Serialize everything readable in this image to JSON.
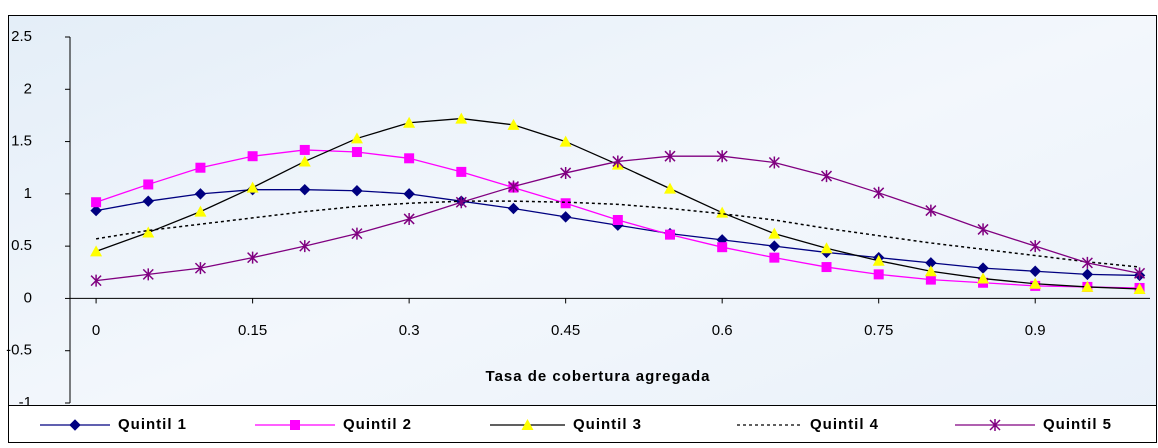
{
  "chart_data": {
    "type": "line",
    "x_label": "Tasa de cobertura agregada",
    "x": [
      0,
      0.05,
      0.1,
      0.15,
      0.2,
      0.25,
      0.3,
      0.35,
      0.4,
      0.45,
      0.5,
      0.55,
      0.6,
      0.65,
      0.7,
      0.75,
      0.8,
      0.85,
      0.9,
      0.95,
      1.0
    ],
    "series": [
      {
        "name": "Quintil 1",
        "color": "#000080",
        "marker": "diamond",
        "marker_color": "#000080",
        "dash": "solid",
        "values": [
          0.84,
          0.93,
          1.0,
          1.04,
          1.04,
          1.03,
          1.0,
          0.93,
          0.86,
          0.78,
          0.7,
          0.62,
          0.56,
          0.5,
          0.44,
          0.39,
          0.34,
          0.29,
          0.26,
          0.23,
          0.22
        ]
      },
      {
        "name": "Quintil 2",
        "color": "#ff00ff",
        "marker": "square",
        "marker_color": "#ff00ff",
        "dash": "solid",
        "values": [
          0.92,
          1.09,
          1.25,
          1.36,
          1.42,
          1.4,
          1.34,
          1.21,
          1.06,
          0.91,
          0.75,
          0.61,
          0.49,
          0.39,
          0.3,
          0.23,
          0.18,
          0.15,
          0.12,
          0.11,
          0.1
        ]
      },
      {
        "name": "Quintil 3",
        "color": "#000000",
        "marker": "triangle",
        "marker_color": "#ffff00",
        "dash": "solid",
        "values": [
          0.45,
          0.63,
          0.83,
          1.06,
          1.31,
          1.53,
          1.68,
          1.72,
          1.66,
          1.5,
          1.28,
          1.05,
          0.82,
          0.62,
          0.48,
          0.36,
          0.26,
          0.19,
          0.14,
          0.11,
          0.09
        ]
      },
      {
        "name": "Quintil 4",
        "color": "#000000",
        "marker": "none",
        "marker_color": "#000000",
        "dash": "dotted",
        "values": [
          0.57,
          0.65,
          0.71,
          0.77,
          0.83,
          0.88,
          0.91,
          0.93,
          0.93,
          0.92,
          0.9,
          0.86,
          0.81,
          0.75,
          0.67,
          0.6,
          0.53,
          0.47,
          0.41,
          0.35,
          0.3
        ]
      },
      {
        "name": "Quintil 5",
        "color": "#800080",
        "marker": "star",
        "marker_color": "#800080",
        "dash": "solid",
        "values": [
          0.17,
          0.23,
          0.29,
          0.39,
          0.5,
          0.62,
          0.76,
          0.92,
          1.07,
          1.2,
          1.31,
          1.36,
          1.36,
          1.3,
          1.17,
          1.01,
          0.84,
          0.66,
          0.5,
          0.34,
          0.24
        ]
      }
    ],
    "xlim": [
      -0.025,
      1.01
    ],
    "xticks": [
      0,
      0.15,
      0.3,
      0.45,
      0.6,
      0.75,
      0.9
    ],
    "ylim": [
      -1,
      2.5
    ],
    "yticks": [
      -1,
      -0.5,
      0,
      0.5,
      1,
      1.5,
      2,
      2.5
    ],
    "legend": "bottom"
  }
}
